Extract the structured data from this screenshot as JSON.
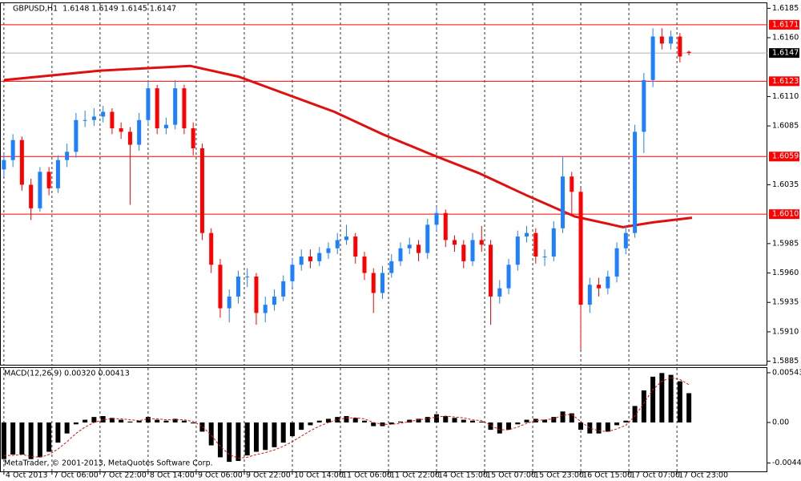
{
  "chart_data": [
    {
      "type": "candlestick",
      "title": "GBPUSD,H1  1.6148 1.6149 1.6145 1.6147",
      "up_color": "#1e7fff",
      "down_color": "#ff0000",
      "xlim": [
        -1.3,
        254.1
      ],
      "xticks": [
        {
          "value": 0,
          "label": "4 Oct 2013"
        },
        {
          "value": 16,
          "label": "7 Oct 06:00"
        },
        {
          "value": 32,
          "label": "7 Oct 22:00"
        },
        {
          "value": 48,
          "label": "8 Oct 14:00"
        },
        {
          "value": 64,
          "label": "9 Oct 06:00"
        },
        {
          "value": 80,
          "label": "9 Oct 22:00"
        },
        {
          "value": 96,
          "label": "10 Oct 14:00"
        },
        {
          "value": 112,
          "label": "11 Oct 06:00"
        },
        {
          "value": 128,
          "label": "11 Oct 22:00"
        },
        {
          "value": 144,
          "label": "14 Oct 15:00"
        },
        {
          "value": 160,
          "label": "15 Oct 07:00"
        },
        {
          "value": 176,
          "label": "15 Oct 23:00"
        },
        {
          "value": 192,
          "label": "16 Oct 15:00"
        },
        {
          "value": 208,
          "label": "17 Oct 07:00"
        },
        {
          "value": 224,
          "label": "17 Oct 23:00"
        }
      ],
      "ylim": [
        1.5882,
        1.619
      ],
      "yticks": [
        1.6185,
        {
          "value": 1.616,
          "label": "1.6160"
        },
        {
          "value": 1.611,
          "label": "1.6110"
        },
        1.6085,
        1.6035,
        1.5985,
        {
          "value": 1.596,
          "label": "1.5960"
        },
        1.5935,
        {
          "value": 1.591,
          "label": "1.5910"
        },
        1.5885
      ],
      "x": [
        0,
        3,
        6,
        9,
        12,
        15,
        18,
        21,
        24,
        27,
        30,
        33,
        36,
        39,
        42,
        45,
        48,
        51,
        54,
        57,
        60,
        63,
        66,
        69,
        72,
        75,
        78,
        81,
        84,
        87,
        90,
        93,
        96,
        99,
        102,
        105,
        108,
        111,
        114,
        117,
        120,
        123,
        126,
        129,
        132,
        135,
        138,
        141,
        144,
        147,
        150,
        153,
        156,
        159,
        162,
        165,
        168,
        171,
        174,
        177,
        180,
        183,
        186,
        189,
        192,
        195,
        198,
        201,
        204,
        207,
        210,
        213,
        216,
        219,
        222,
        225,
        228
      ],
      "open": [
        1.6048,
        1.6056,
        1.6073,
        1.6035,
        1.6015,
        1.6046,
        1.6032,
        1.6056,
        1.6063,
        1.609,
        1.609,
        1.6093,
        1.6097,
        1.6083,
        1.608,
        1.6069,
        1.609,
        1.6117,
        1.6083,
        1.6086,
        1.6117,
        1.6083,
        1.6066,
        1.5994,
        1.5967,
        1.593,
        1.594,
        1.5957,
        1.5957,
        1.5926,
        1.5933,
        1.594,
        1.5953,
        1.5967,
        1.5974,
        1.597,
        1.5977,
        1.5981,
        1.5988,
        1.5991,
        1.5974,
        1.596,
        1.5943,
        1.596,
        1.597,
        1.5981,
        1.5984,
        1.5977,
        1.6001,
        1.6011,
        1.5988,
        1.5984,
        1.597,
        1.5988,
        1.5984,
        1.594,
        1.5947,
        1.5967,
        1.5991,
        1.5994,
        1.5974,
        1.5974,
        1.5998,
        1.6042,
        1.6029,
        1.5933,
        1.595,
        1.5947,
        1.5957,
        1.5981,
        1.5994,
        1.608,
        1.6124,
        1.6161,
        1.6155,
        1.6161,
        1.6148
      ],
      "high": [
        1.6062,
        1.6078,
        1.6076,
        1.604,
        1.605,
        1.605,
        1.606,
        1.607,
        1.6096,
        1.6098,
        1.61,
        1.6102,
        1.61,
        1.6088,
        1.6084,
        1.6096,
        1.6124,
        1.612,
        1.6092,
        1.6124,
        1.612,
        1.6088,
        1.607,
        1.5998,
        1.5972,
        1.5946,
        1.5962,
        1.5964,
        1.596,
        1.594,
        1.5946,
        1.5958,
        1.5972,
        1.598,
        1.598,
        1.5982,
        1.5986,
        1.5994,
        1.6001,
        1.5994,
        1.5978,
        1.5964,
        1.5966,
        1.5976,
        1.5986,
        1.599,
        1.5988,
        1.6006,
        1.6016,
        1.6014,
        1.5992,
        1.5988,
        1.5994,
        1.6,
        1.5988,
        1.5954,
        1.5972,
        1.5996,
        1.6,
        1.5998,
        1.598,
        1.6004,
        1.6059,
        1.6046,
        1.6032,
        1.5956,
        1.5956,
        1.5962,
        1.5986,
        1.6,
        1.6086,
        1.613,
        1.6168,
        1.6168,
        1.6166,
        1.6164,
        1.6149
      ],
      "low": [
        1.6042,
        1.605,
        1.603,
        1.6005,
        1.6012,
        1.6026,
        1.6028,
        1.605,
        1.6058,
        1.6084,
        1.6085,
        1.6088,
        1.6078,
        1.6074,
        1.6018,
        1.6064,
        1.6086,
        1.6078,
        1.6078,
        1.6082,
        1.6078,
        1.606,
        1.5988,
        1.596,
        1.5922,
        1.5918,
        1.5934,
        1.5948,
        1.5916,
        1.5918,
        1.5928,
        1.5936,
        1.5948,
        1.5962,
        1.5964,
        1.5966,
        1.5972,
        1.5976,
        1.5984,
        1.5968,
        1.5954,
        1.5926,
        1.5938,
        1.5956,
        1.5966,
        1.5976,
        1.597,
        1.5972,
        1.5996,
        1.5982,
        1.5978,
        1.5964,
        1.5966,
        1.5978,
        1.5916,
        1.5934,
        1.5942,
        1.5962,
        1.5986,
        1.5968,
        1.5966,
        1.597,
        1.5994,
        1.601,
        1.5895,
        1.5926,
        1.594,
        1.5942,
        1.5952,
        1.5976,
        1.599,
        1.6062,
        1.6118,
        1.615,
        1.615,
        1.6139,
        1.6145
      ],
      "close": [
        1.6056,
        1.6073,
        1.6035,
        1.6015,
        1.6046,
        1.6032,
        1.6056,
        1.6063,
        1.609,
        1.609,
        1.6093,
        1.6097,
        1.6083,
        1.608,
        1.6069,
        1.609,
        1.6117,
        1.6083,
        1.6086,
        1.6117,
        1.6083,
        1.6066,
        1.5994,
        1.5967,
        1.593,
        1.594,
        1.5957,
        1.5957,
        1.5926,
        1.5933,
        1.594,
        1.5953,
        1.5967,
        1.5974,
        1.597,
        1.5977,
        1.5981,
        1.5988,
        1.5991,
        1.5974,
        1.596,
        1.5943,
        1.596,
        1.597,
        1.5981,
        1.5984,
        1.5977,
        1.6001,
        1.6011,
        1.5988,
        1.5984,
        1.597,
        1.5988,
        1.5984,
        1.594,
        1.5947,
        1.5967,
        1.5991,
        1.5994,
        1.5974,
        1.5974,
        1.5998,
        1.6042,
        1.6029,
        1.5933,
        1.595,
        1.5947,
        1.5957,
        1.5981,
        1.5994,
        1.608,
        1.6124,
        1.6161,
        1.6155,
        1.6161,
        1.6144,
        1.6147
      ],
      "moving_average": {
        "color": "#e01010",
        "x": [
          0,
          32,
          62,
          78,
          94,
          110,
          126,
          142,
          158,
          174,
          190,
          206,
          216,
          229
        ],
        "values": [
          1.6124,
          1.6132,
          1.6136,
          1.6127,
          1.6112,
          1.6097,
          1.6078,
          1.6061,
          1.6045,
          1.6026,
          1.6008,
          1.5999,
          1.6003,
          1.6007
        ]
      },
      "level_color": "#ff0000",
      "levels": [
        1.6171,
        1.6123,
        1.6059,
        {
          "value": 1.601,
          "label": "1.6010"
        }
      ],
      "last_price": 1.6147
    },
    {
      "type": "macd",
      "title": "MACD(12,26,9) 0.00320 0.00413",
      "color": "#000000",
      "xlim": [
        -1.3,
        254.1
      ],
      "ylim": [
        -0.00534,
        0.00604
      ],
      "yticks": [
        0.00543,
        {
          "value": 0,
          "label": "0.00"
        },
        -0.00443
      ],
      "x": [
        0,
        3,
        6,
        9,
        12,
        15,
        18,
        21,
        24,
        27,
        30,
        33,
        36,
        39,
        42,
        45,
        48,
        51,
        54,
        57,
        60,
        63,
        66,
        69,
        72,
        75,
        78,
        81,
        84,
        87,
        90,
        93,
        96,
        99,
        102,
        105,
        108,
        111,
        114,
        117,
        120,
        123,
        126,
        129,
        132,
        135,
        138,
        141,
        144,
        147,
        150,
        153,
        156,
        159,
        162,
        165,
        168,
        171,
        174,
        177,
        180,
        183,
        186,
        189,
        192,
        195,
        198,
        201,
        204,
        207,
        210,
        213,
        216,
        219,
        222,
        225,
        228
      ],
      "values": [
        -0.004,
        -0.0035,
        -0.0035,
        -0.004,
        -0.0038,
        -0.0032,
        -0.0022,
        -0.0012,
        -0.0002,
        0.0003,
        0.0006,
        0.0007,
        0.0005,
        0.0003,
        0.0001,
        0.0002,
        0.0006,
        0.0003,
        0.0002,
        0.0004,
        0.0002,
        -0.0001,
        -0.001,
        -0.0025,
        -0.0038,
        -0.0043,
        -0.0042,
        -0.0036,
        -0.0032,
        -0.003,
        -0.0027,
        -0.0022,
        -0.0015,
        -0.0008,
        -0.0003,
        0.0002,
        0.0004,
        0.0006,
        0.0007,
        0.0005,
        0.0002,
        -0.0004,
        -0.0004,
        -0.0002,
        0.0001,
        0.0003,
        0.0004,
        0.0006,
        0.0009,
        0.0007,
        0.0005,
        0.0003,
        0.0002,
        0.0001,
        -0.0008,
        -0.0012,
        -0.0008,
        -0.0002,
        0.0003,
        0.0004,
        0.0003,
        0.0006,
        0.0012,
        0.001,
        -0.0008,
        -0.0012,
        -0.0012,
        -0.001,
        -0.0003,
        0.0002,
        0.0018,
        0.0035,
        0.005,
        0.0054,
        0.0052,
        0.0045,
        0.0032
      ],
      "signal": {
        "color": "#e01010",
        "values": [
          -0.0036,
          -0.0036,
          -0.0035,
          -0.0037,
          -0.0038,
          -0.0035,
          -0.0029,
          -0.0021,
          -0.0012,
          -0.0005,
          0,
          0.0003,
          0.0004,
          0.0004,
          0.0003,
          0.0002,
          0.0004,
          0.0004,
          0.0003,
          0.0003,
          0.0003,
          0.0001,
          -0.0004,
          -0.0014,
          -0.0026,
          -0.0035,
          -0.0039,
          -0.0038,
          -0.0035,
          -0.0033,
          -0.003,
          -0.0026,
          -0.0021,
          -0.0015,
          -0.0009,
          -0.0004,
          0,
          0.0003,
          0.0005,
          0.0005,
          0.0004,
          0,
          -0.0002,
          -0.0002,
          -0.0001,
          0.0001,
          0.0003,
          0.0004,
          0.0006,
          0.0007,
          0.0006,
          0.0005,
          0.0003,
          0.0002,
          -0.0003,
          -0.0008,
          -0.0008,
          -0.0005,
          -0.0001,
          0.0002,
          0.0003,
          0.0004,
          0.0008,
          0.0009,
          0.0001,
          -0.0006,
          -0.0009,
          -0.001,
          -0.0007,
          -0.0003,
          0.0007,
          0.0021,
          0.0036,
          0.0045,
          0.0049,
          0.0047,
          0.00413
        ]
      }
    }
  ],
  "copyright": "MetaTrader, © 2001-2013, MetaQuotes Software Corp."
}
